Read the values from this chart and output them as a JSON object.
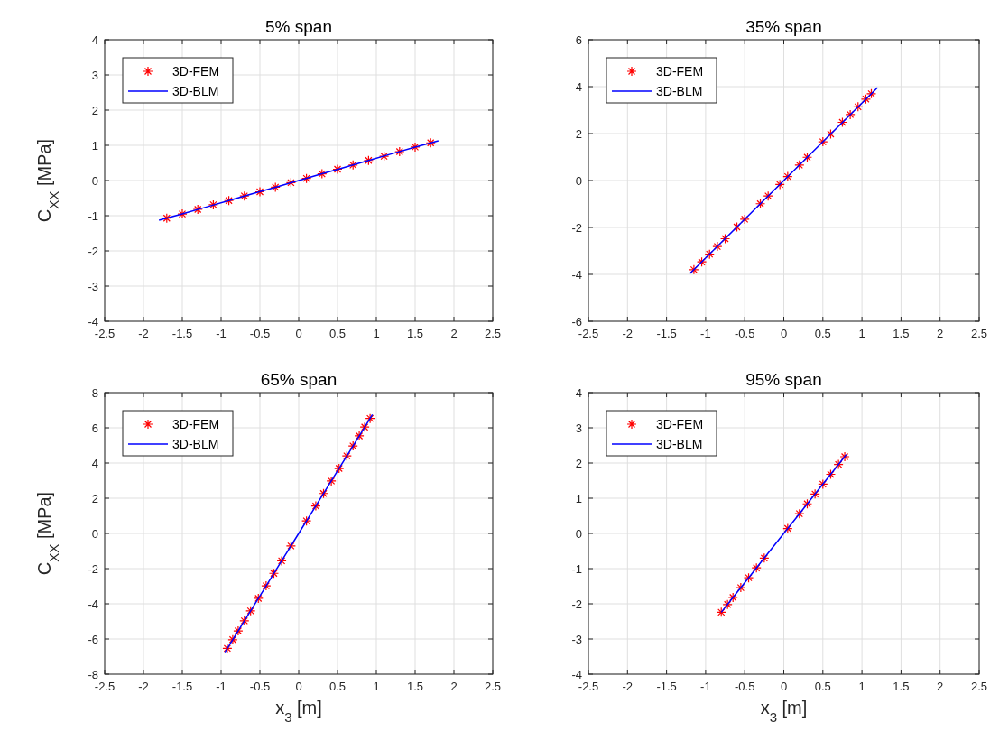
{
  "chart_data": [
    {
      "type": "scatter",
      "title": "5% span",
      "ylabel": "C$_{XX}$  [MPa]",
      "xlim": [
        -2.5,
        2.5
      ],
      "xticks": [
        -2.5,
        -2,
        -1.5,
        -1,
        -0.5,
        0,
        0.5,
        1,
        1.5,
        2,
        2.5
      ],
      "ylim": [
        -4,
        4
      ],
      "yticks": [
        -4,
        -3,
        -2,
        -1,
        0,
        1,
        2,
        3,
        4
      ],
      "grid": true,
      "legend": "top left",
      "series": [
        {
          "name": "3D-FEM",
          "marker": "cross",
          "color": "#ff0000",
          "x": [
            -1.7,
            -1.5,
            -1.3,
            -1.1,
            -0.9,
            -0.7,
            -0.5,
            -0.3,
            -0.1,
            0.1,
            0.3,
            0.5,
            0.7,
            0.9,
            1.1,
            1.3,
            1.5,
            1.7
          ],
          "values": [
            -1.07,
            -0.95,
            -0.82,
            -0.69,
            -0.57,
            -0.44,
            -0.32,
            -0.19,
            -0.06,
            0.06,
            0.19,
            0.32,
            0.44,
            0.57,
            0.69,
            0.82,
            0.95,
            1.07
          ]
        },
        {
          "name": "3D-BLM",
          "type": "line",
          "marker": "none",
          "line_style": "solid",
          "color": "#0000ff",
          "x": [
            -1.8,
            -1.5,
            -1.2,
            -0.9,
            -0.6,
            -0.3,
            0,
            0.3,
            0.6,
            0.9,
            1.2,
            1.5,
            1.8
          ],
          "values": [
            -1.13,
            -0.95,
            -0.76,
            -0.57,
            -0.38,
            -0.19,
            0,
            0.19,
            0.38,
            0.57,
            0.76,
            0.95,
            1.13
          ]
        }
      ]
    },
    {
      "type": "scatter",
      "title": "35% span",
      "xlim": [
        -2.5,
        2.5
      ],
      "xticks": [
        -2.5,
        -2,
        -1.5,
        -1,
        -0.5,
        0,
        0.5,
        1,
        1.5,
        2,
        2.5
      ],
      "ylim": [
        -6,
        6
      ],
      "yticks": [
        -6,
        -4,
        -2,
        0,
        2,
        4,
        6
      ],
      "grid": true,
      "legend": "top left",
      "series": [
        {
          "name": "3D-FEM",
          "marker": "cross",
          "color": "#ff0000",
          "x": [
            -1.15,
            -1.05,
            -0.95,
            -0.85,
            -0.75,
            -0.6,
            -0.5,
            -0.3,
            -0.2,
            -0.05,
            0.05,
            0.2,
            0.3,
            0.5,
            0.6,
            0.75,
            0.85,
            0.95,
            1.05,
            1.12
          ],
          "values": [
            -3.8,
            -3.47,
            -3.14,
            -2.81,
            -2.48,
            -1.98,
            -1.65,
            -0.99,
            -0.66,
            -0.17,
            0.17,
            0.66,
            0.99,
            1.65,
            1.98,
            2.48,
            2.81,
            3.14,
            3.47,
            3.7
          ]
        },
        {
          "name": "3D-BLM",
          "type": "line",
          "marker": "none",
          "line_style": "solid",
          "color": "#0000ff",
          "x": [
            -1.2,
            -0.9,
            -0.6,
            -0.3,
            0,
            0.3,
            0.6,
            0.9,
            1.2
          ],
          "values": [
            -3.96,
            -2.97,
            -1.98,
            -0.99,
            0,
            0.99,
            1.98,
            2.97,
            3.96
          ]
        }
      ]
    },
    {
      "type": "scatter",
      "title": "65% span",
      "ylabel": "C$_{XX}$  [MPa]",
      "xlabel": "x$_{3}$  [m]",
      "xlim": [
        -2.5,
        2.5
      ],
      "xticks": [
        -2.5,
        -2,
        -1.5,
        -1,
        -0.5,
        0,
        0.5,
        1,
        1.5,
        2,
        2.5
      ],
      "ylim": [
        -8,
        8
      ],
      "yticks": [
        -8,
        -6,
        -4,
        -2,
        0,
        2,
        4,
        6,
        8
      ],
      "grid": true,
      "legend": "top left",
      "series": [
        {
          "name": "3D-FEM",
          "marker": "cross",
          "color": "#ff0000",
          "x": [
            -0.92,
            -0.85,
            -0.78,
            -0.7,
            -0.62,
            -0.52,
            -0.42,
            -0.32,
            -0.22,
            -0.1,
            0.1,
            0.22,
            0.32,
            0.42,
            0.52,
            0.62,
            0.7,
            0.78,
            0.85,
            0.92
          ],
          "values": [
            -6.53,
            -6.04,
            -5.54,
            -4.97,
            -4.4,
            -3.69,
            -2.98,
            -2.27,
            -1.56,
            -0.71,
            0.71,
            1.56,
            2.27,
            2.98,
            3.69,
            4.4,
            4.97,
            5.54,
            6.04,
            6.53
          ]
        },
        {
          "name": "3D-BLM",
          "type": "line",
          "marker": "none",
          "line_style": "solid",
          "color": "#0000ff",
          "x": [
            -0.95,
            -0.7,
            -0.45,
            -0.2,
            0,
            0.2,
            0.45,
            0.7,
            0.95
          ],
          "values": [
            -6.75,
            -4.97,
            -3.2,
            -1.42,
            0,
            1.42,
            3.2,
            4.97,
            6.75
          ]
        }
      ]
    },
    {
      "type": "scatter",
      "title": "95% span",
      "xlabel": "x$_{3}$  [m]",
      "xlim": [
        -2.5,
        2.5
      ],
      "xticks": [
        -2.5,
        -2,
        -1.5,
        -1,
        -0.5,
        0,
        0.5,
        1,
        1.5,
        2,
        2.5
      ],
      "ylim": [
        -4,
        4
      ],
      "yticks": [
        -4,
        -3,
        -2,
        -1,
        0,
        1,
        2,
        3,
        4
      ],
      "grid": true,
      "legend": "top left",
      "series": [
        {
          "name": "3D-FEM",
          "marker": "cross",
          "color": "#ff0000",
          "x": [
            -0.8,
            -0.72,
            -0.65,
            -0.55,
            -0.45,
            -0.35,
            -0.25,
            0.05,
            0.2,
            0.3,
            0.4,
            0.5,
            0.6,
            0.7,
            0.78
          ],
          "values": [
            -2.24,
            -2.02,
            -1.82,
            -1.54,
            -1.26,
            -0.98,
            -0.7,
            0.14,
            0.56,
            0.84,
            1.12,
            1.4,
            1.68,
            1.96,
            2.18
          ]
        },
        {
          "name": "3D-BLM",
          "type": "line",
          "marker": "none",
          "line_style": "solid",
          "color": "#0000ff",
          "x": [
            -0.8,
            -0.6,
            -0.4,
            -0.2,
            0,
            0.2,
            0.4,
            0.6,
            0.8
          ],
          "values": [
            -2.24,
            -1.68,
            -1.12,
            -0.56,
            0,
            0.56,
            1.12,
            1.68,
            2.24
          ]
        }
      ]
    }
  ]
}
